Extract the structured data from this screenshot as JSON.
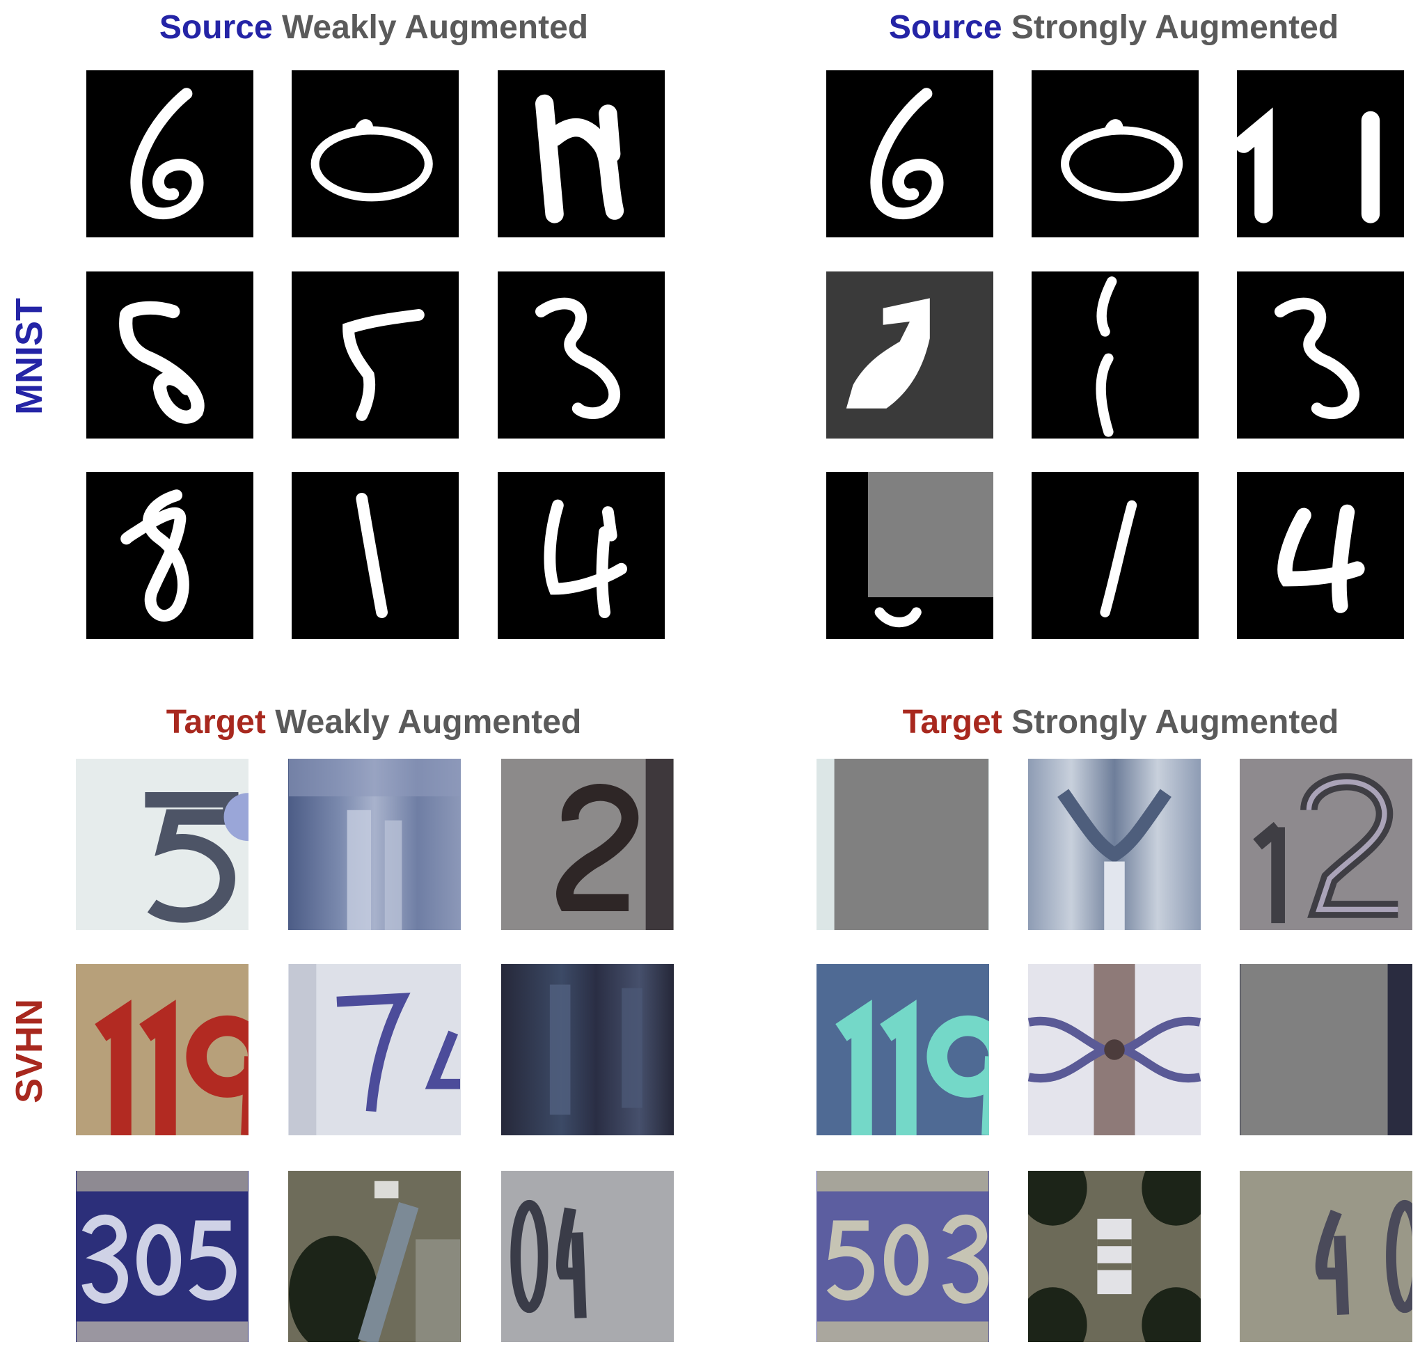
{
  "panels": {
    "source_weak": {
      "highlight": "Source",
      "rest": "Weakly Augmented"
    },
    "source_strong": {
      "highlight": "Source",
      "rest": "Strongly Augmented"
    },
    "target_weak": {
      "highlight": "Target",
      "rest": "Weakly Augmented"
    },
    "target_strong": {
      "highlight": "Target",
      "rest": "Strongly Augmented"
    }
  },
  "row_labels": {
    "mnist": "MNIST",
    "svhn": "SVHN"
  },
  "colors": {
    "source": "#2424a6",
    "target": "#a8281e",
    "title_gray": "#5a5a5a",
    "mask_gray": "#808080"
  }
}
